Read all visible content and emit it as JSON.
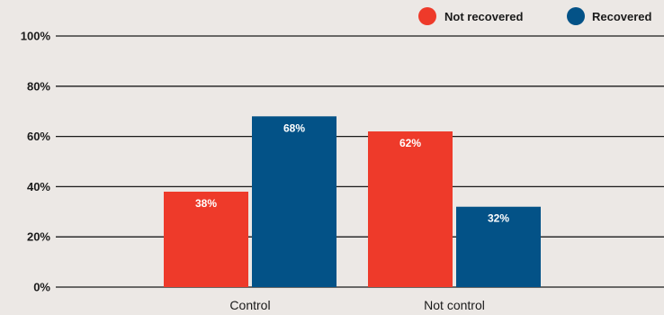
{
  "chart_data": {
    "type": "bar",
    "categories": [
      "Control",
      "Not control"
    ],
    "series": [
      {
        "name": "Not recovered",
        "color": "#ee3a2a",
        "values": [
          38,
          62
        ],
        "labels": [
          "38%",
          "62%"
        ]
      },
      {
        "name": "Recovered",
        "color": "#035287",
        "values": [
          68,
          32
        ],
        "labels": [
          "68%",
          "32%"
        ]
      }
    ],
    "ylim": [
      0,
      100
    ],
    "yticks": [
      0,
      20,
      40,
      60,
      80,
      100
    ],
    "ytick_labels": [
      "0%",
      "20%",
      "40%",
      "60%",
      "80%",
      "100%"
    ],
    "grid": true,
    "legend_position": "top-right",
    "title": "",
    "xlabel": "",
    "ylabel": ""
  }
}
